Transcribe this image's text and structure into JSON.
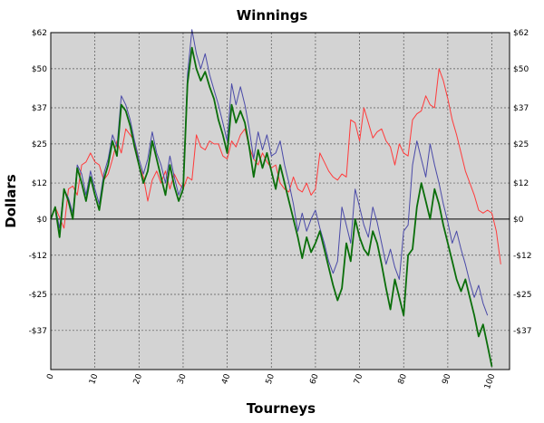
{
  "chart_data": {
    "type": "line",
    "title": "Winnings",
    "xlabel": "Tourneys",
    "ylabel": "Dollars",
    "xlim": [
      0,
      104
    ],
    "ylim": [
      -50,
      62
    ],
    "x_ticks": [
      0,
      10,
      20,
      30,
      40,
      50,
      60,
      70,
      80,
      90,
      100
    ],
    "y_ticks": [
      62,
      50,
      37,
      25,
      12,
      0,
      -12,
      -25,
      -37
    ],
    "y_tick_labels": [
      "$62",
      "$50",
      "$37",
      "$25",
      "$12",
      "$0",
      "-$12",
      "-$25",
      "-$37"
    ],
    "grid": true,
    "legend": "none",
    "zero_line": true,
    "background_color": "#d3d3d3",
    "series": [
      {
        "color": "#ff3b3b",
        "points": [
          [
            0,
            0
          ],
          [
            1,
            4
          ],
          [
            3,
            -3
          ],
          [
            4,
            10
          ],
          [
            5,
            11
          ],
          [
            6,
            8
          ],
          [
            7,
            18
          ],
          [
            8,
            19
          ],
          [
            9,
            22
          ],
          [
            10,
            19
          ],
          [
            11,
            18
          ],
          [
            12,
            13
          ],
          [
            13,
            15
          ],
          [
            14,
            20
          ],
          [
            15,
            26
          ],
          [
            16,
            22
          ],
          [
            17,
            30
          ],
          [
            18,
            28
          ],
          [
            19,
            26
          ],
          [
            20,
            18
          ],
          [
            21,
            14
          ],
          [
            22,
            6
          ],
          [
            23,
            13
          ],
          [
            24,
            16
          ],
          [
            25,
            12
          ],
          [
            26,
            16
          ],
          [
            27,
            10
          ],
          [
            28,
            15
          ],
          [
            29,
            12
          ],
          [
            30,
            10
          ],
          [
            31,
            14
          ],
          [
            32,
            13
          ],
          [
            33,
            28
          ],
          [
            34,
            24
          ],
          [
            35,
            23
          ],
          [
            36,
            26
          ],
          [
            37,
            25
          ],
          [
            38,
            25
          ],
          [
            39,
            21
          ],
          [
            40,
            20
          ],
          [
            41,
            26
          ],
          [
            42,
            24
          ],
          [
            43,
            28
          ],
          [
            44,
            30
          ],
          [
            45,
            24
          ],
          [
            46,
            20
          ],
          [
            47,
            18
          ],
          [
            48,
            22
          ],
          [
            49,
            19
          ],
          [
            50,
            17
          ],
          [
            51,
            18
          ],
          [
            52,
            12
          ],
          [
            53,
            10
          ],
          [
            54,
            9
          ],
          [
            55,
            14
          ],
          [
            56,
            10
          ],
          [
            57,
            9
          ],
          [
            58,
            12
          ],
          [
            59,
            8
          ],
          [
            60,
            10
          ],
          [
            61,
            22
          ],
          [
            62,
            19
          ],
          [
            63,
            16
          ],
          [
            64,
            14
          ],
          [
            65,
            13
          ],
          [
            66,
            15
          ],
          [
            67,
            14
          ],
          [
            68,
            33
          ],
          [
            69,
            32
          ],
          [
            70,
            26
          ],
          [
            71,
            37
          ],
          [
            72,
            32
          ],
          [
            73,
            27
          ],
          [
            74,
            29
          ],
          [
            75,
            30
          ],
          [
            76,
            26
          ],
          [
            77,
            24
          ],
          [
            78,
            18
          ],
          [
            79,
            25
          ],
          [
            80,
            22
          ],
          [
            81,
            21
          ],
          [
            82,
            33
          ],
          [
            83,
            35
          ],
          [
            84,
            36
          ],
          [
            85,
            41
          ],
          [
            86,
            38
          ],
          [
            87,
            37
          ],
          [
            88,
            50
          ],
          [
            89,
            46
          ],
          [
            90,
            40
          ],
          [
            91,
            33
          ],
          [
            92,
            28
          ],
          [
            93,
            22
          ],
          [
            94,
            16
          ],
          [
            95,
            12
          ],
          [
            96,
            8
          ],
          [
            97,
            3
          ],
          [
            98,
            2
          ],
          [
            99,
            3
          ],
          [
            100,
            2
          ],
          [
            101,
            -4
          ],
          [
            102,
            -15
          ]
        ]
      },
      {
        "color": "#4a4aa8",
        "points": [
          [
            0,
            0
          ],
          [
            1,
            4
          ],
          [
            2,
            -3
          ],
          [
            3,
            10
          ],
          [
            4,
            7
          ],
          [
            5,
            2
          ],
          [
            6,
            18
          ],
          [
            7,
            15
          ],
          [
            8,
            8
          ],
          [
            9,
            16
          ],
          [
            10,
            10
          ],
          [
            11,
            5
          ],
          [
            12,
            15
          ],
          [
            13,
            20
          ],
          [
            14,
            28
          ],
          [
            15,
            24
          ],
          [
            16,
            41
          ],
          [
            17,
            38
          ],
          [
            18,
            33
          ],
          [
            19,
            26
          ],
          [
            20,
            20
          ],
          [
            21,
            15
          ],
          [
            22,
            20
          ],
          [
            23,
            29
          ],
          [
            24,
            22
          ],
          [
            25,
            18
          ],
          [
            26,
            12
          ],
          [
            27,
            21
          ],
          [
            28,
            14
          ],
          [
            29,
            8
          ],
          [
            30,
            12
          ],
          [
            31,
            48
          ],
          [
            32,
            63
          ],
          [
            33,
            55
          ],
          [
            34,
            50
          ],
          [
            35,
            55
          ],
          [
            36,
            48
          ],
          [
            37,
            43
          ],
          [
            38,
            38
          ],
          [
            39,
            32
          ],
          [
            40,
            26
          ],
          [
            41,
            45
          ],
          [
            42,
            38
          ],
          [
            43,
            44
          ],
          [
            44,
            38
          ],
          [
            45,
            30
          ],
          [
            46,
            20
          ],
          [
            47,
            29
          ],
          [
            48,
            23
          ],
          [
            49,
            28
          ],
          [
            50,
            21
          ],
          [
            51,
            22
          ],
          [
            52,
            26
          ],
          [
            53,
            18
          ],
          [
            54,
            12
          ],
          [
            55,
            5
          ],
          [
            56,
            -4
          ],
          [
            57,
            2
          ],
          [
            58,
            -4
          ],
          [
            59,
            0
          ],
          [
            60,
            3
          ],
          [
            61,
            -3
          ],
          [
            62,
            -8
          ],
          [
            63,
            -14
          ],
          [
            64,
            -18
          ],
          [
            65,
            -14
          ],
          [
            66,
            4
          ],
          [
            67,
            -2
          ],
          [
            68,
            -8
          ],
          [
            69,
            10
          ],
          [
            70,
            4
          ],
          [
            71,
            -2
          ],
          [
            72,
            -6
          ],
          [
            73,
            4
          ],
          [
            74,
            -1
          ],
          [
            75,
            -8
          ],
          [
            76,
            -15
          ],
          [
            77,
            -10
          ],
          [
            78,
            -16
          ],
          [
            79,
            -20
          ],
          [
            80,
            -4
          ],
          [
            81,
            -2
          ],
          [
            82,
            18
          ],
          [
            83,
            26
          ],
          [
            84,
            20
          ],
          [
            85,
            14
          ],
          [
            86,
            25
          ],
          [
            87,
            18
          ],
          [
            88,
            12
          ],
          [
            89,
            5
          ],
          [
            90,
            -1
          ],
          [
            91,
            -8
          ],
          [
            92,
            -4
          ],
          [
            93,
            -10
          ],
          [
            94,
            -15
          ],
          [
            95,
            -21
          ],
          [
            96,
            -26
          ],
          [
            97,
            -22
          ],
          [
            98,
            -28
          ],
          [
            99,
            -32
          ]
        ]
      },
      {
        "color": "#0a6e0a",
        "points": [
          [
            0,
            0
          ],
          [
            1,
            4
          ],
          [
            2,
            -6
          ],
          [
            3,
            10
          ],
          [
            4,
            6
          ],
          [
            5,
            0
          ],
          [
            6,
            17
          ],
          [
            7,
            12
          ],
          [
            8,
            6
          ],
          [
            9,
            14
          ],
          [
            10,
            8
          ],
          [
            11,
            3
          ],
          [
            12,
            13
          ],
          [
            13,
            18
          ],
          [
            14,
            26
          ],
          [
            15,
            21
          ],
          [
            16,
            38
          ],
          [
            17,
            36
          ],
          [
            18,
            31
          ],
          [
            19,
            24
          ],
          [
            20,
            18
          ],
          [
            21,
            12
          ],
          [
            22,
            16
          ],
          [
            23,
            26
          ],
          [
            24,
            20
          ],
          [
            25,
            14
          ],
          [
            26,
            8
          ],
          [
            27,
            18
          ],
          [
            28,
            11
          ],
          [
            29,
            6
          ],
          [
            30,
            10
          ],
          [
            31,
            45
          ],
          [
            32,
            57
          ],
          [
            33,
            50
          ],
          [
            34,
            46
          ],
          [
            35,
            49
          ],
          [
            36,
            44
          ],
          [
            37,
            40
          ],
          [
            38,
            33
          ],
          [
            39,
            28
          ],
          [
            40,
            22
          ],
          [
            41,
            38
          ],
          [
            42,
            32
          ],
          [
            43,
            36
          ],
          [
            44,
            32
          ],
          [
            45,
            24
          ],
          [
            46,
            14
          ],
          [
            47,
            23
          ],
          [
            48,
            17
          ],
          [
            49,
            22
          ],
          [
            50,
            16
          ],
          [
            51,
            10
          ],
          [
            52,
            18
          ],
          [
            53,
            12
          ],
          [
            54,
            6
          ],
          [
            55,
            0
          ],
          [
            56,
            -6
          ],
          [
            57,
            -13
          ],
          [
            58,
            -6
          ],
          [
            59,
            -11
          ],
          [
            60,
            -8
          ],
          [
            61,
            -4
          ],
          [
            62,
            -10
          ],
          [
            63,
            -16
          ],
          [
            64,
            -22
          ],
          [
            65,
            -27
          ],
          [
            66,
            -23
          ],
          [
            67,
            -8
          ],
          [
            68,
            -14
          ],
          [
            69,
            0
          ],
          [
            70,
            -6
          ],
          [
            71,
            -10
          ],
          [
            72,
            -12
          ],
          [
            73,
            -4
          ],
          [
            74,
            -8
          ],
          [
            75,
            -15
          ],
          [
            76,
            -23
          ],
          [
            77,
            -30
          ],
          [
            78,
            -20
          ],
          [
            79,
            -26
          ],
          [
            80,
            -32
          ],
          [
            81,
            -12
          ],
          [
            82,
            -10
          ],
          [
            83,
            4
          ],
          [
            84,
            12
          ],
          [
            85,
            6
          ],
          [
            86,
            0
          ],
          [
            87,
            10
          ],
          [
            88,
            5
          ],
          [
            89,
            -2
          ],
          [
            90,
            -8
          ],
          [
            91,
            -14
          ],
          [
            92,
            -20
          ],
          [
            93,
            -24
          ],
          [
            94,
            -20
          ],
          [
            95,
            -26
          ],
          [
            96,
            -32
          ],
          [
            97,
            -39
          ],
          [
            98,
            -35
          ],
          [
            99,
            -42
          ],
          [
            100,
            -49
          ]
        ]
      }
    ]
  }
}
